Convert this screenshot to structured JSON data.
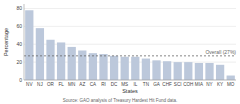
{
  "chart_data": {
    "type": "bar",
    "categories": [
      "NV",
      "NJ",
      "OR",
      "FL",
      "MN",
      "AZ",
      "CA",
      "RI",
      "DC",
      "MS",
      "IL",
      "TN",
      "GA",
      "CHF",
      "SCI",
      "COH",
      "MIA",
      "NY",
      "KY",
      "MO"
    ],
    "values": [
      78,
      58,
      45,
      42,
      37,
      33,
      30,
      29,
      27,
      26,
      26,
      24,
      22,
      21,
      20,
      20,
      19,
      19,
      17,
      5
    ],
    "color": "#bcc8db",
    "xlabel": "States",
    "ylabel": "Percentage",
    "source": "Source: GAO analysis of Treasury Hardest Hit Fund data.",
    "annotations": [
      {
        "text": "Overall (27%)",
        "value": 27,
        "color": "#666666"
      }
    ],
    "ylim": [
      0,
      85
    ],
    "yticks": [
      0,
      20,
      40,
      60,
      80
    ],
    "grid": true
  }
}
